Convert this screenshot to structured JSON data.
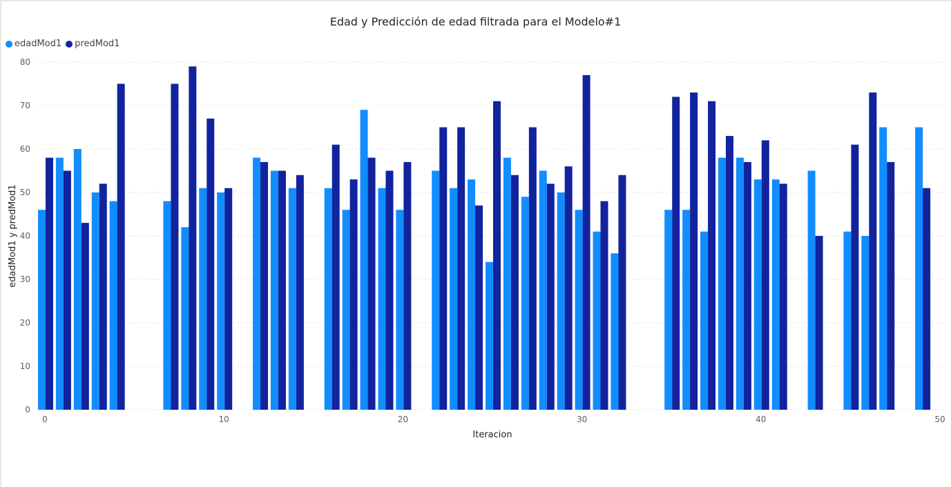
{
  "chart_data": {
    "type": "bar",
    "title": "Edad y Predicción de edad filtrada para el Modelo#1",
    "xlabel": "Iteracion",
    "ylabel": "edadMod1 y predMod1",
    "xlim": [
      0,
      50
    ],
    "ylim": [
      0,
      80
    ],
    "xticks": [
      0,
      10,
      20,
      30,
      40,
      50
    ],
    "yticks": [
      0,
      10,
      20,
      30,
      40,
      50,
      60,
      70,
      80
    ],
    "grid": true,
    "legend_position": "top-left",
    "series": [
      {
        "name": "edadMod1",
        "color": "#118dff"
      },
      {
        "name": "predMod1",
        "color": "#12239e"
      }
    ],
    "points": [
      {
        "x": 0,
        "edadMod1": 46,
        "predMod1": 58
      },
      {
        "x": 1,
        "edadMod1": 58,
        "predMod1": 55
      },
      {
        "x": 2,
        "edadMod1": 60,
        "predMod1": 43
      },
      {
        "x": 3,
        "edadMod1": 50,
        "predMod1": 52
      },
      {
        "x": 4,
        "edadMod1": 48,
        "predMod1": 75
      },
      {
        "x": 7,
        "edadMod1": 48,
        "predMod1": 75
      },
      {
        "x": 8,
        "edadMod1": 42,
        "predMod1": 79
      },
      {
        "x": 9,
        "edadMod1": 51,
        "predMod1": 67
      },
      {
        "x": 10,
        "edadMod1": 50,
        "predMod1": 51
      },
      {
        "x": 12,
        "edadMod1": 58,
        "predMod1": 57
      },
      {
        "x": 13,
        "edadMod1": 55,
        "predMod1": 55
      },
      {
        "x": 14,
        "edadMod1": 51,
        "predMod1": 54
      },
      {
        "x": 16,
        "edadMod1": 51,
        "predMod1": 61
      },
      {
        "x": 17,
        "edadMod1": 46,
        "predMod1": 53
      },
      {
        "x": 18,
        "edadMod1": 69,
        "predMod1": 58
      },
      {
        "x": 19,
        "edadMod1": 51,
        "predMod1": 55
      },
      {
        "x": 20,
        "edadMod1": 46,
        "predMod1": 57
      },
      {
        "x": 22,
        "edadMod1": 55,
        "predMod1": 65
      },
      {
        "x": 23,
        "edadMod1": 51,
        "predMod1": 65
      },
      {
        "x": 24,
        "edadMod1": 53,
        "predMod1": 47
      },
      {
        "x": 25,
        "edadMod1": 34,
        "predMod1": 71
      },
      {
        "x": 26,
        "edadMod1": 58,
        "predMod1": 54
      },
      {
        "x": 27,
        "edadMod1": 49,
        "predMod1": 65
      },
      {
        "x": 28,
        "edadMod1": 55,
        "predMod1": 52
      },
      {
        "x": 29,
        "edadMod1": 50,
        "predMod1": 56
      },
      {
        "x": 30,
        "edadMod1": 46,
        "predMod1": 77
      },
      {
        "x": 31,
        "edadMod1": 41,
        "predMod1": 48
      },
      {
        "x": 32,
        "edadMod1": 36,
        "predMod1": 54
      },
      {
        "x": 35,
        "edadMod1": 46,
        "predMod1": 72
      },
      {
        "x": 36,
        "edadMod1": 46,
        "predMod1": 73
      },
      {
        "x": 37,
        "edadMod1": 41,
        "predMod1": 71
      },
      {
        "x": 38,
        "edadMod1": 58,
        "predMod1": 63
      },
      {
        "x": 39,
        "edadMod1": 58,
        "predMod1": 57
      },
      {
        "x": 40,
        "edadMod1": 53,
        "predMod1": 62
      },
      {
        "x": 41,
        "edadMod1": 53,
        "predMod1": 52
      },
      {
        "x": 43,
        "edadMod1": 55,
        "predMod1": 40
      },
      {
        "x": 45,
        "edadMod1": 41,
        "predMod1": 61
      },
      {
        "x": 46,
        "edadMod1": 40,
        "predMod1": 73
      },
      {
        "x": 47,
        "edadMod1": 65,
        "predMod1": 57
      },
      {
        "x": 49,
        "edadMod1": 65,
        "predMod1": 51
      }
    ]
  }
}
